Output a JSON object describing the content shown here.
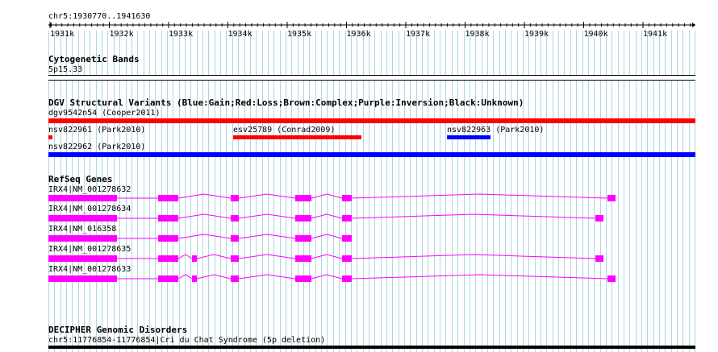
{
  "ruler": {
    "location": "chr5:1930770..1941630",
    "ticks": [
      "1931k",
      "1932k",
      "1933k",
      "1934k",
      "1935k",
      "1936k",
      "1937k",
      "1938k",
      "1939k",
      "1940k",
      "1941k"
    ]
  },
  "tracks": {
    "cytoband": {
      "title": "Cytogenetic Bands",
      "band": "5p15.33"
    },
    "dgv": {
      "title": "DGV Structural Variants (Blue:Gain;Red:Loss;Brown:Complex;Purple:Inversion;Black:Unknown)",
      "features": [
        {
          "name": "dgv9542n54 (Cooper2011)",
          "type": "loss",
          "color": "#ff0000"
        },
        {
          "name": "nsv822961 (Park2010)",
          "type": "loss",
          "color": "#ff0000"
        },
        {
          "name": "esv25789 (Conrad2009)",
          "type": "loss",
          "color": "#ff0000"
        },
        {
          "name": "nsv822963 (Park2010)",
          "type": "gain",
          "color": "#0000ff"
        },
        {
          "name": "nsv822962 (Park2010)",
          "type": "gain",
          "color": "#0000ff"
        }
      ]
    },
    "refseq": {
      "title": "RefSeq Genes",
      "color": "#ff00ff",
      "transcripts": [
        {
          "name": "IRX4|NM_001278632"
        },
        {
          "name": "IRX4|NM_001278634"
        },
        {
          "name": "IRX4|NM_016358"
        },
        {
          "name": "IRX4|NM_001278635"
        },
        {
          "name": "IRX4|NM_001278633"
        }
      ]
    },
    "decipher": {
      "title": "DECIPHER Genomic Disorders",
      "feature": "chr5:11776854-11776854|Cri du Chat Syndrome (5p deletion)"
    }
  },
  "colors": {
    "grid": "#aed6e0",
    "gain": "#0000ff",
    "loss": "#ff0000",
    "gene": "#ff00ff"
  }
}
